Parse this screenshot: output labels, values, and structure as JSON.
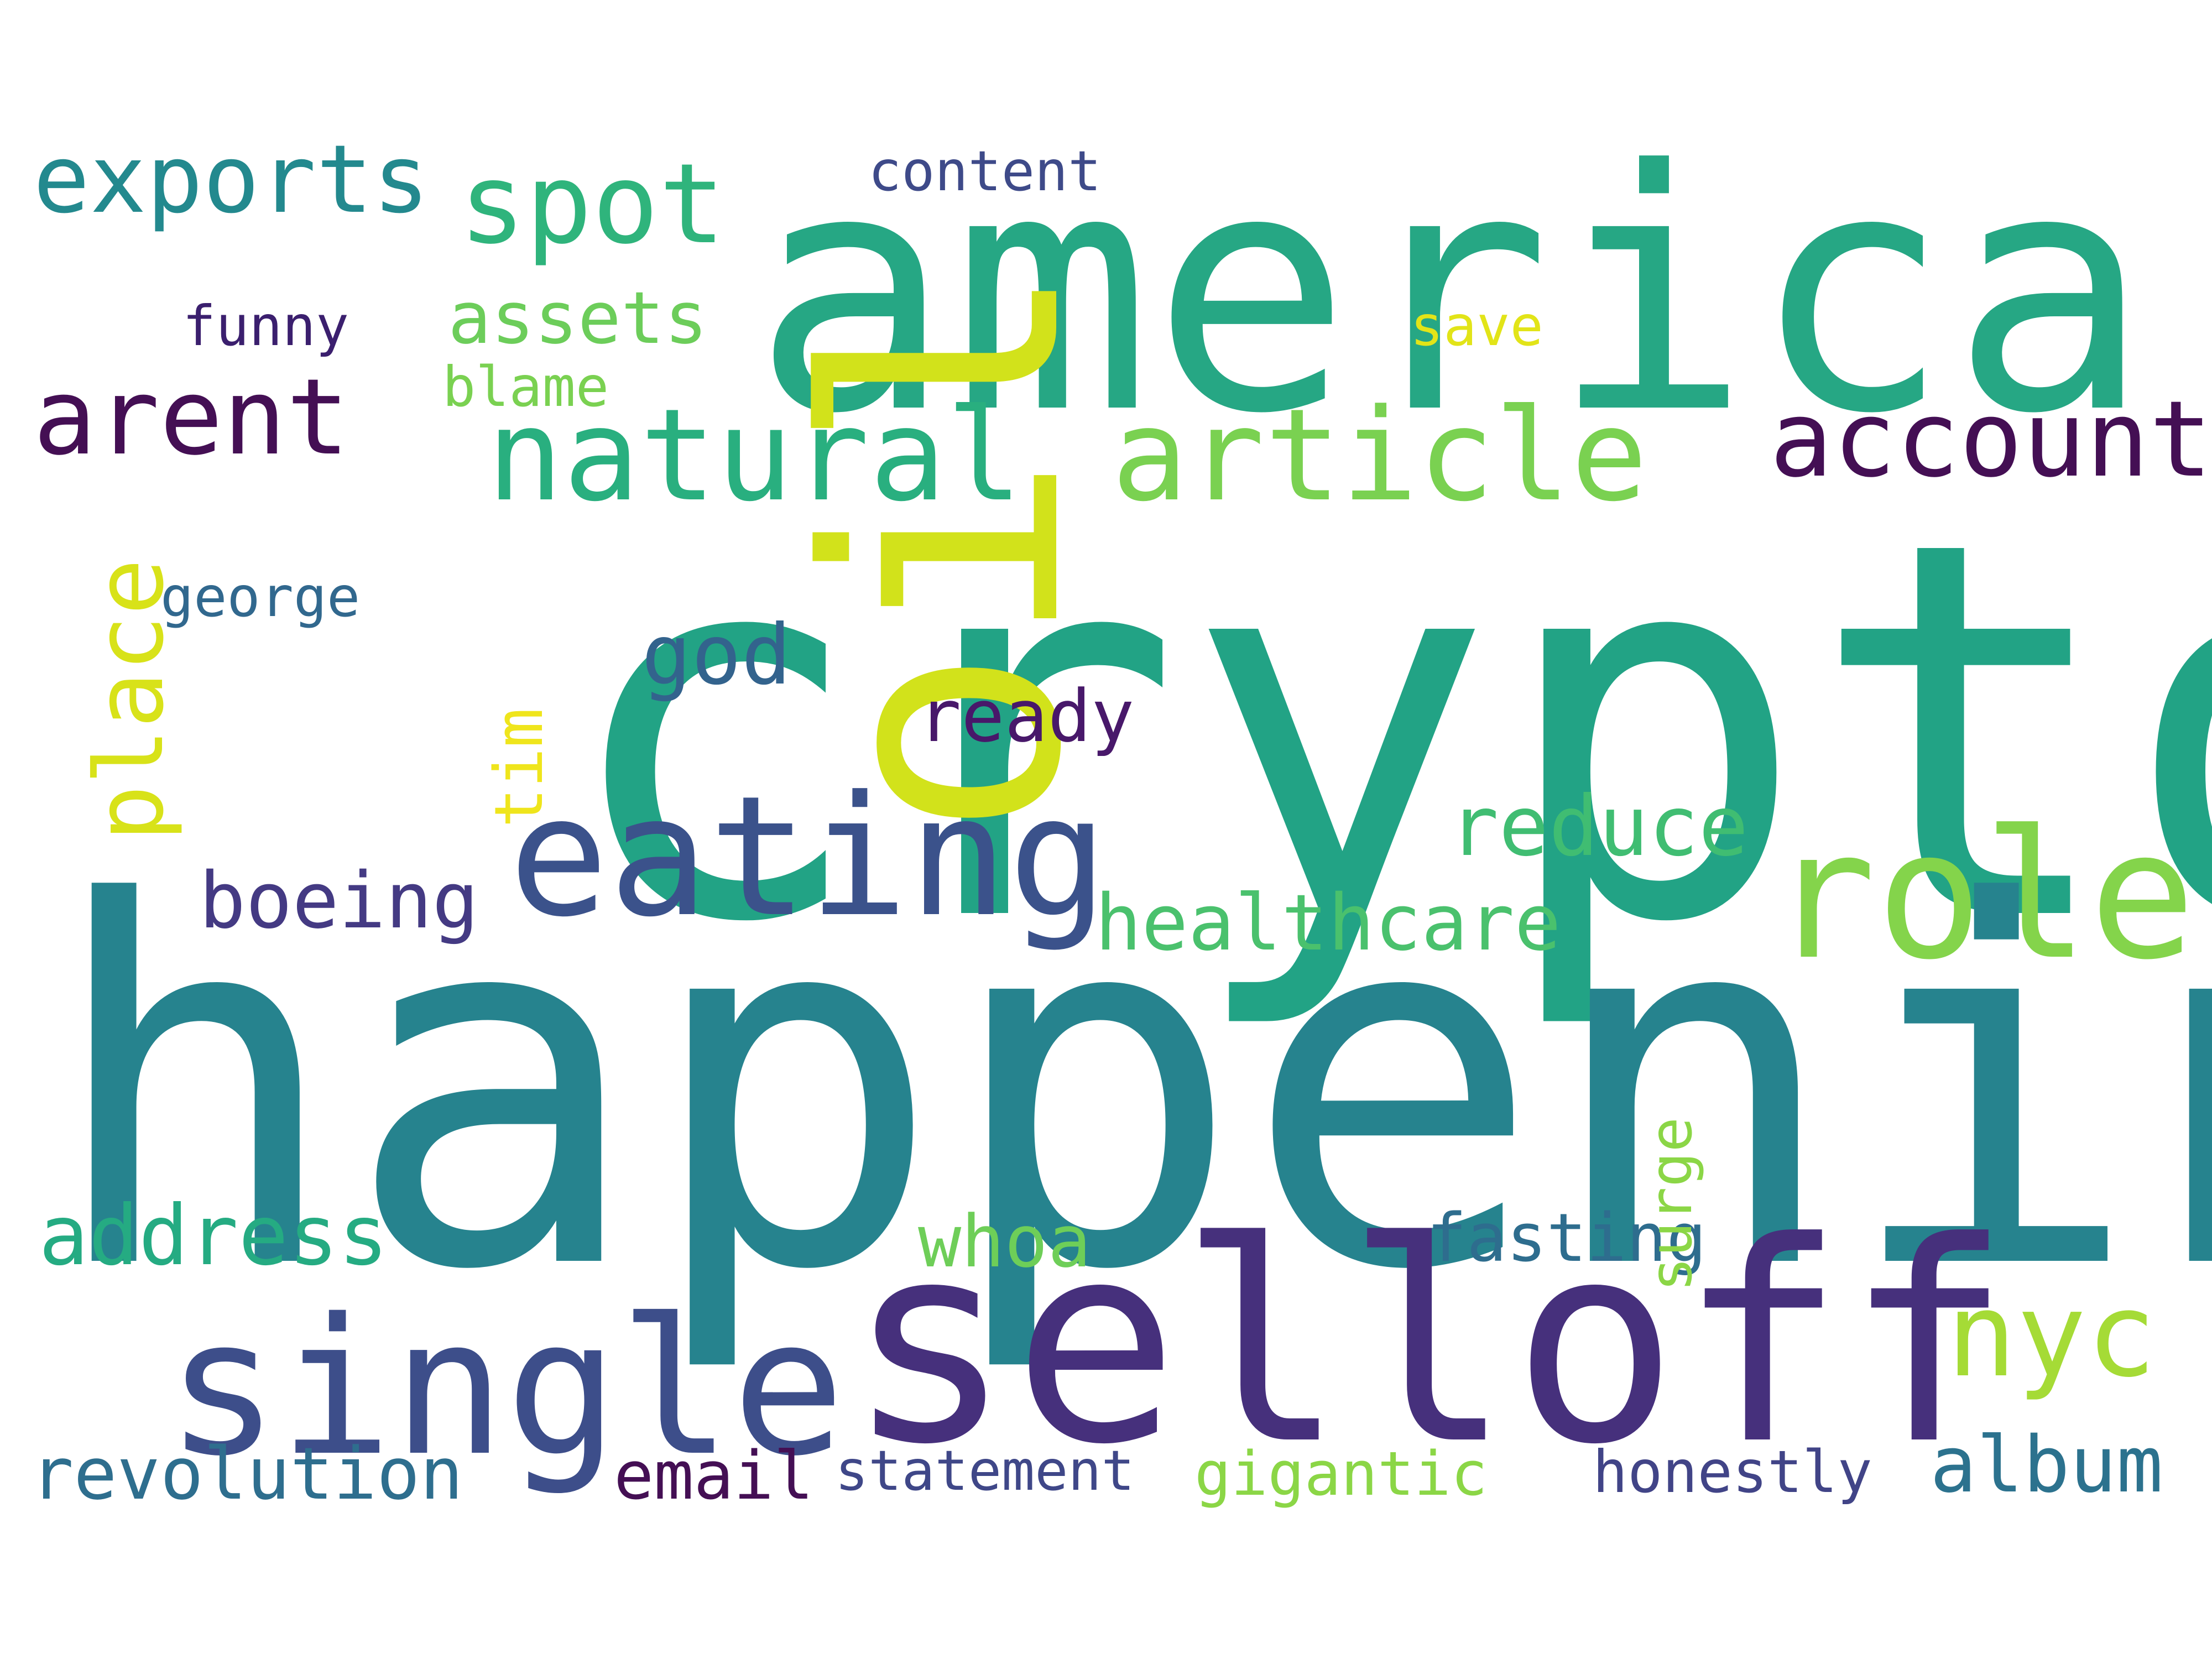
{
  "words": [
    {
      "text": "crypto",
      "color": "#22a385"
    },
    {
      "text": "happening",
      "color": "#26838e"
    },
    {
      "text": "america",
      "color": "#26a784"
    },
    {
      "text": "oil",
      "color": "#d2e21b"
    },
    {
      "text": "selloff",
      "color": "#46307c"
    },
    {
      "text": "single",
      "color": "#3d4e8a"
    },
    {
      "text": "eating",
      "color": "#3b528b"
    },
    {
      "text": "role",
      "color": "#84d44b"
    },
    {
      "text": "natural",
      "color": "#29af7f"
    },
    {
      "text": "article",
      "color": "#7ad151"
    },
    {
      "text": "account",
      "color": "#440f54"
    },
    {
      "text": "spot",
      "color": "#2fb47c"
    },
    {
      "text": "exports",
      "color": "#23898e"
    },
    {
      "text": "arent",
      "color": "#440f54"
    },
    {
      "text": "nyc",
      "color": "#a5db36"
    },
    {
      "text": "address",
      "color": "#25ab82"
    },
    {
      "text": "place",
      "color": "#d8e219"
    },
    {
      "text": "boeing",
      "color": "#443a83"
    },
    {
      "text": "reduce",
      "color": "#40bd72"
    },
    {
      "text": "healthcare",
      "color": "#4ac16d"
    },
    {
      "text": "god",
      "color": "#33638d"
    },
    {
      "text": "ready",
      "color": "#48186a"
    },
    {
      "text": "revolution",
      "color": "#2e6e8e"
    },
    {
      "text": "album",
      "color": "#2c728e"
    },
    {
      "text": "assets",
      "color": "#6ccd5a"
    },
    {
      "text": "fasting",
      "color": "#2e6d8e"
    },
    {
      "text": "whoa",
      "color": "#6ece58"
    },
    {
      "text": "email",
      "color": "#440f54"
    },
    {
      "text": "statement",
      "color": "#3f4788"
    },
    {
      "text": "gigantic",
      "color": "#8bd646"
    },
    {
      "text": "honestly",
      "color": "#414487"
    },
    {
      "text": "surge",
      "color": "#8bd646"
    },
    {
      "text": "tim",
      "color": "#efe51c"
    },
    {
      "text": "george",
      "color": "#31688e"
    },
    {
      "text": "content",
      "color": "#3e4a89"
    },
    {
      "text": "funny",
      "color": "#3b1f6e"
    },
    {
      "text": "save",
      "color": "#e2e418"
    },
    {
      "text": "blame",
      "color": "#7ad151"
    }
  ]
}
